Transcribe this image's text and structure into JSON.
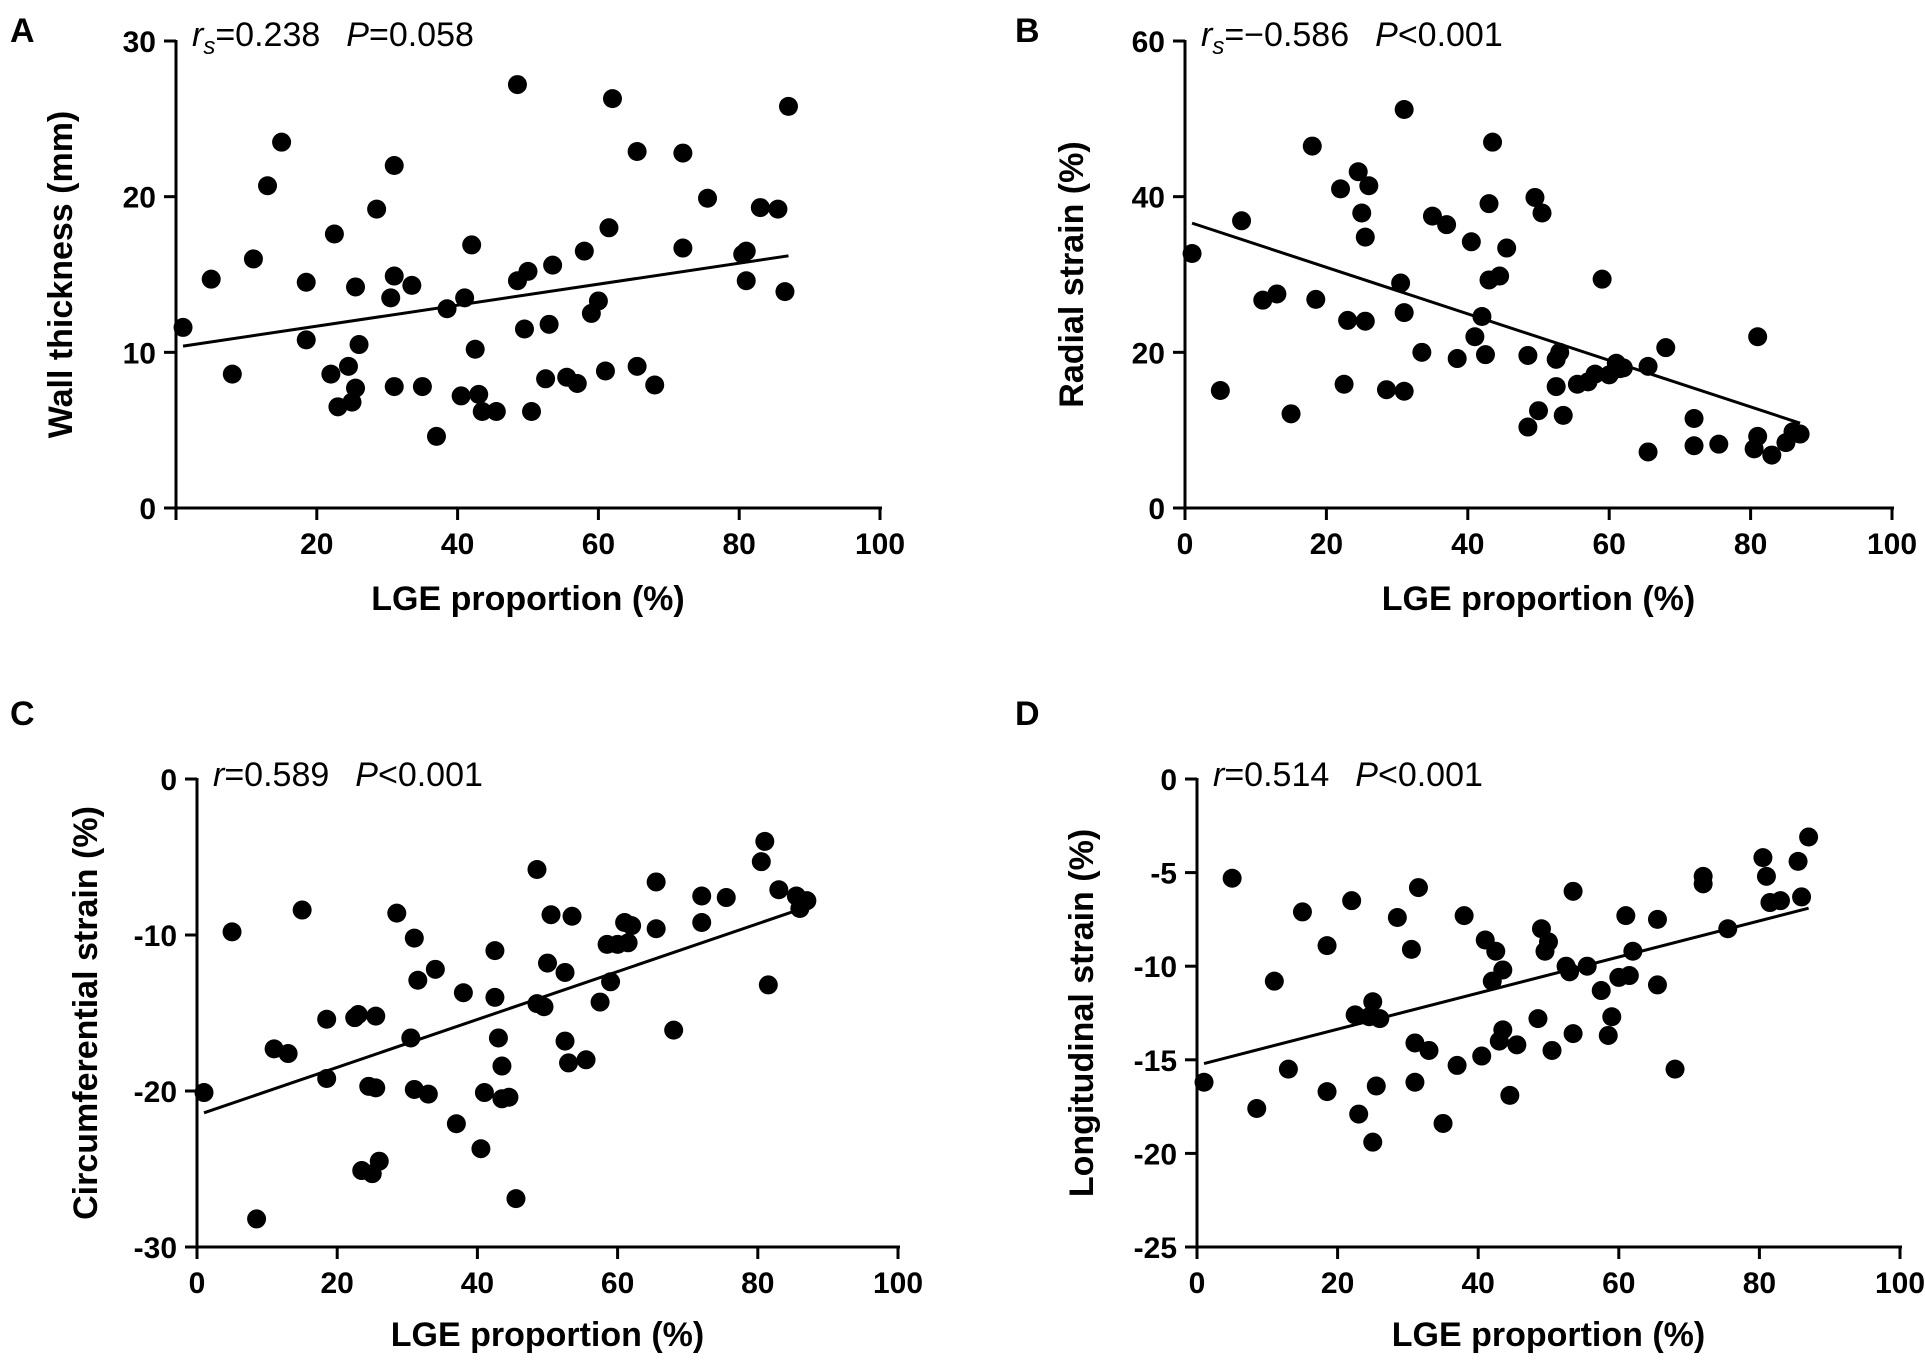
{
  "chart_data": [
    {
      "panel": "A",
      "type": "scatter",
      "stat": {
        "coef_symbol": "r",
        "coef_sub": "s",
        "coef_value": "=0.238",
        "p_symbol": "P",
        "p_value": "=0.058"
      },
      "xlabel": "LGE proportion (%)",
      "ylabel": "Wall thickness (mm)",
      "xlim": [
        0,
        100
      ],
      "ylim": [
        0,
        30
      ],
      "xticks": [
        0,
        20,
        40,
        60,
        80,
        100
      ],
      "xtick_labels": [
        "",
        "20",
        "40",
        "60",
        "80",
        "100"
      ],
      "yticks": [
        0,
        10,
        20,
        30
      ],
      "ytick_labels": [
        "0",
        "10",
        "20",
        "30"
      ],
      "fit": [
        [
          1,
          10.4
        ],
        [
          87,
          16.2
        ]
      ],
      "points": [
        [
          1,
          11.6
        ],
        [
          5,
          14.7
        ],
        [
          8,
          8.6
        ],
        [
          11,
          16
        ],
        [
          13,
          20.7
        ],
        [
          15,
          23.5
        ],
        [
          18.5,
          14.5
        ],
        [
          18.5,
          10.8
        ],
        [
          22,
          8.6
        ],
        [
          22.5,
          17.6
        ],
        [
          23,
          6.5
        ],
        [
          24.5,
          9.1
        ],
        [
          25,
          6.8
        ],
        [
          25.5,
          7.7
        ],
        [
          25.5,
          14.2
        ],
        [
          26,
          10.5
        ],
        [
          28.5,
          19.2
        ],
        [
          30.5,
          13.5
        ],
        [
          31,
          22
        ],
        [
          31,
          14.9
        ],
        [
          31,
          7.8
        ],
        [
          33.5,
          14.3
        ],
        [
          35,
          7.8
        ],
        [
          37,
          4.6
        ],
        [
          38.5,
          12.8
        ],
        [
          40.5,
          7.2
        ],
        [
          41,
          13.5
        ],
        [
          42,
          16.9
        ],
        [
          42.5,
          10.2
        ],
        [
          43,
          7.3
        ],
        [
          43.5,
          6.2
        ],
        [
          45.5,
          6.2
        ],
        [
          48.5,
          14.6
        ],
        [
          48.5,
          27.2
        ],
        [
          49.5,
          11.5
        ],
        [
          50,
          15.2
        ],
        [
          50.5,
          6.2
        ],
        [
          52.5,
          8.3
        ],
        [
          53,
          11.8
        ],
        [
          53.5,
          15.6
        ],
        [
          55.5,
          8.4
        ],
        [
          57,
          8
        ],
        [
          58,
          16.5
        ],
        [
          59,
          12.5
        ],
        [
          60,
          13.3
        ],
        [
          61,
          8.8
        ],
        [
          61.5,
          18
        ],
        [
          62,
          26.3
        ],
        [
          65.5,
          22.9
        ],
        [
          65.5,
          9.1
        ],
        [
          68,
          7.9
        ],
        [
          72,
          22.8
        ],
        [
          72,
          16.7
        ],
        [
          75.5,
          19.9
        ],
        [
          80.5,
          16.3
        ],
        [
          81,
          14.6
        ],
        [
          81,
          16.5
        ],
        [
          83,
          19.3
        ],
        [
          85.5,
          19.2
        ],
        [
          86.5,
          13.9
        ],
        [
          87,
          25.8
        ]
      ]
    },
    {
      "panel": "B",
      "type": "scatter",
      "stat": {
        "coef_symbol": "r",
        "coef_sub": "s",
        "coef_value": "=−0.586",
        "p_symbol": "P",
        "p_value": "<0.001"
      },
      "xlabel": "LGE proportion (%)",
      "ylabel": "Radial strain (%)",
      "xlim": [
        0,
        100
      ],
      "ylim": [
        0,
        60
      ],
      "xticks": [
        0,
        20,
        40,
        60,
        80,
        100
      ],
      "xtick_labels": [
        "0",
        "20",
        "40",
        "60",
        "80",
        "100"
      ],
      "yticks": [
        0,
        20,
        40,
        60
      ],
      "ytick_labels": [
        "0",
        "20",
        "40",
        "60"
      ],
      "fit": [
        [
          1,
          36.6
        ],
        [
          87,
          10.9
        ]
      ],
      "points": [
        [
          1,
          32.7
        ],
        [
          5,
          15.1
        ],
        [
          8,
          36.9
        ],
        [
          11,
          26.7
        ],
        [
          13,
          27.5
        ],
        [
          15,
          12.1
        ],
        [
          18,
          46.5
        ],
        [
          18.5,
          26.8
        ],
        [
          22,
          41
        ],
        [
          22.5,
          15.9
        ],
        [
          23,
          24.1
        ],
        [
          24.5,
          43.2
        ],
        [
          25,
          37.9
        ],
        [
          25.5,
          34.8
        ],
        [
          25.5,
          24
        ],
        [
          26,
          41.4
        ],
        [
          28.5,
          15.2
        ],
        [
          30.5,
          28.9
        ],
        [
          31,
          51.2
        ],
        [
          31,
          15
        ],
        [
          31,
          25.1
        ],
        [
          33.5,
          20
        ],
        [
          35,
          37.5
        ],
        [
          37,
          36.4
        ],
        [
          38.5,
          19.2
        ],
        [
          40.5,
          34.2
        ],
        [
          41,
          22
        ],
        [
          42,
          24.6
        ],
        [
          42.5,
          19.7
        ],
        [
          43,
          39.1
        ],
        [
          43,
          29.3
        ],
        [
          43.5,
          47
        ],
        [
          44.5,
          29.8
        ],
        [
          45.5,
          33.4
        ],
        [
          48.5,
          19.6
        ],
        [
          48.5,
          10.4
        ],
        [
          49.5,
          39.9
        ],
        [
          50,
          12.5
        ],
        [
          50.5,
          37.9
        ],
        [
          52.5,
          15.6
        ],
        [
          52.5,
          19.1
        ],
        [
          53,
          20
        ],
        [
          53.5,
          11.9
        ],
        [
          55.5,
          15.9
        ],
        [
          57,
          16.2
        ],
        [
          58,
          17.2
        ],
        [
          59,
          29.4
        ],
        [
          60,
          17.1
        ],
        [
          61,
          18.6
        ],
        [
          61.5,
          17.9
        ],
        [
          62,
          18
        ],
        [
          65.5,
          18.2
        ],
        [
          65.5,
          7.2
        ],
        [
          68,
          20.6
        ],
        [
          72,
          11.5
        ],
        [
          72,
          8
        ],
        [
          75.5,
          8.2
        ],
        [
          80.5,
          7.6
        ],
        [
          81,
          9.2
        ],
        [
          81,
          22
        ],
        [
          83,
          6.8
        ],
        [
          85,
          8.4
        ],
        [
          86,
          9.8
        ],
        [
          87,
          9.5
        ]
      ]
    },
    {
      "panel": "C",
      "type": "scatter",
      "stat": {
        "coef_symbol": "r",
        "coef_sub": "",
        "coef_value": "=0.589",
        "p_symbol": "P",
        "p_value": "<0.001"
      },
      "xlabel": "LGE proportion (%)",
      "ylabel": "Circumferential strain (%)",
      "xlim": [
        0,
        100
      ],
      "ylim": [
        -30,
        0
      ],
      "xticks": [
        0,
        20,
        40,
        60,
        80,
        100
      ],
      "xtick_labels": [
        "0",
        "20",
        "40",
        "60",
        "80",
        "100"
      ],
      "yticks": [
        -30,
        -20,
        -10,
        0
      ],
      "ytick_labels": [
        "-30",
        "-20",
        "-10",
        "0"
      ],
      "fit": [
        [
          1,
          -21.4
        ],
        [
          87,
          -8.2
        ]
      ],
      "points": [
        [
          1,
          -20.1
        ],
        [
          5,
          -9.8
        ],
        [
          8.5,
          -28.2
        ],
        [
          11,
          -17.3
        ],
        [
          13,
          -17.6
        ],
        [
          15,
          -8.4
        ],
        [
          18.5,
          -15.4
        ],
        [
          18.5,
          -19.2
        ],
        [
          22.5,
          -15.3
        ],
        [
          23,
          -15.1
        ],
        [
          23.5,
          -25.1
        ],
        [
          24.5,
          -19.7
        ],
        [
          25,
          -25.3
        ],
        [
          25.5,
          -19.8
        ],
        [
          25.5,
          -15.2
        ],
        [
          26,
          -24.5
        ],
        [
          28.5,
          -8.6
        ],
        [
          30.5,
          -16.6
        ],
        [
          31,
          -10.2
        ],
        [
          31,
          -19.9
        ],
        [
          31.5,
          -12.9
        ],
        [
          33,
          -20.2
        ],
        [
          34,
          -12.2
        ],
        [
          37,
          -22.1
        ],
        [
          38,
          -13.7
        ],
        [
          40.5,
          -23.7
        ],
        [
          41,
          -20.1
        ],
        [
          42.5,
          -11
        ],
        [
          42.5,
          -14
        ],
        [
          43,
          -16.6
        ],
        [
          43.5,
          -20.5
        ],
        [
          43.5,
          -18.4
        ],
        [
          44.5,
          -20.4
        ],
        [
          45.5,
          -26.9
        ],
        [
          48.5,
          -14.4
        ],
        [
          48.5,
          -5.8
        ],
        [
          49.5,
          -14.6
        ],
        [
          50,
          -11.8
        ],
        [
          50.5,
          -8.7
        ],
        [
          52.5,
          -12.4
        ],
        [
          52.5,
          -16.8
        ],
        [
          53,
          -18.2
        ],
        [
          53.5,
          -8.8
        ],
        [
          55.5,
          -18
        ],
        [
          57.5,
          -14.3
        ],
        [
          58.5,
          -10.6
        ],
        [
          59,
          -13
        ],
        [
          60,
          -10.6
        ],
        [
          61,
          -9.2
        ],
        [
          61.5,
          -10.5
        ],
        [
          62,
          -9.4
        ],
        [
          65.5,
          -6.6
        ],
        [
          65.5,
          -9.6
        ],
        [
          68,
          -16.1
        ],
        [
          72,
          -9.2
        ],
        [
          72,
          -7.5
        ],
        [
          75.5,
          -7.6
        ],
        [
          80.5,
          -5.3
        ],
        [
          81,
          -4
        ],
        [
          81.5,
          -13.2
        ],
        [
          83,
          -7.1
        ],
        [
          85.5,
          -7.5
        ],
        [
          86,
          -8.3
        ],
        [
          87,
          -7.8
        ]
      ]
    },
    {
      "panel": "D",
      "type": "scatter",
      "stat": {
        "coef_symbol": "r",
        "coef_sub": "",
        "coef_value": "=0.514",
        "p_symbol": "P",
        "p_value": "<0.001"
      },
      "xlabel": "LGE proportion (%)",
      "ylabel": "Longitudinal strain (%)",
      "xlim": [
        0,
        100
      ],
      "ylim": [
        -25,
        0
      ],
      "xticks": [
        0,
        20,
        40,
        60,
        80,
        100
      ],
      "xtick_labels": [
        "0",
        "20",
        "40",
        "60",
        "80",
        "100"
      ],
      "yticks": [
        -25,
        -20,
        -15,
        -10,
        -5,
        0
      ],
      "ytick_labels": [
        "-25",
        "-20",
        "-15",
        "-10",
        "-5",
        "0"
      ],
      "fit": [
        [
          1,
          -15.2
        ],
        [
          87,
          -6.9
        ]
      ],
      "points": [
        [
          1,
          -16.2
        ],
        [
          5,
          -5.3
        ],
        [
          8.5,
          -17.6
        ],
        [
          11,
          -10.8
        ],
        [
          13,
          -15.5
        ],
        [
          15,
          -7.1
        ],
        [
          18.5,
          -8.9
        ],
        [
          18.5,
          -16.7
        ],
        [
          22,
          -6.5
        ],
        [
          22.5,
          -12.6
        ],
        [
          23,
          -17.9
        ],
        [
          24.5,
          -12.7
        ],
        [
          25,
          -19.4
        ],
        [
          25,
          -11.9
        ],
        [
          25.5,
          -16.4
        ],
        [
          26,
          -12.8
        ],
        [
          28.5,
          -7.4
        ],
        [
          30.5,
          -9.1
        ],
        [
          31,
          -14.1
        ],
        [
          31,
          -16.2
        ],
        [
          31.5,
          -5.8
        ],
        [
          33,
          -14.5
        ],
        [
          35,
          -18.4
        ],
        [
          37,
          -15.3
        ],
        [
          38,
          -7.3
        ],
        [
          40.5,
          -14.8
        ],
        [
          41,
          -8.6
        ],
        [
          42,
          -10.8
        ],
        [
          42.5,
          -9.2
        ],
        [
          43,
          -14
        ],
        [
          43.5,
          -13.4
        ],
        [
          43.5,
          -10.2
        ],
        [
          44.5,
          -16.9
        ],
        [
          45.5,
          -14.2
        ],
        [
          48.5,
          -12.8
        ],
        [
          49,
          -8
        ],
        [
          49.5,
          -9.2
        ],
        [
          50,
          -8.7
        ],
        [
          50.5,
          -14.5
        ],
        [
          52.5,
          -10
        ],
        [
          53,
          -10.3
        ],
        [
          53.5,
          -13.6
        ],
        [
          53.5,
          -6
        ],
        [
          55.5,
          -10
        ],
        [
          57.5,
          -11.3
        ],
        [
          58.5,
          -13.7
        ],
        [
          59,
          -12.7
        ],
        [
          60,
          -10.6
        ],
        [
          61,
          -7.3
        ],
        [
          61.5,
          -10.5
        ],
        [
          62,
          -9.2
        ],
        [
          65.5,
          -7.5
        ],
        [
          65.5,
          -11
        ],
        [
          68,
          -15.5
        ],
        [
          72,
          -5.6
        ],
        [
          72,
          -5.2
        ],
        [
          75.5,
          -8
        ],
        [
          80.5,
          -4.2
        ],
        [
          81,
          -5.2
        ],
        [
          81.5,
          -6.6
        ],
        [
          83,
          -6.5
        ],
        [
          85.5,
          -4.4
        ],
        [
          86,
          -6.3
        ],
        [
          87,
          -3.1
        ]
      ]
    }
  ]
}
